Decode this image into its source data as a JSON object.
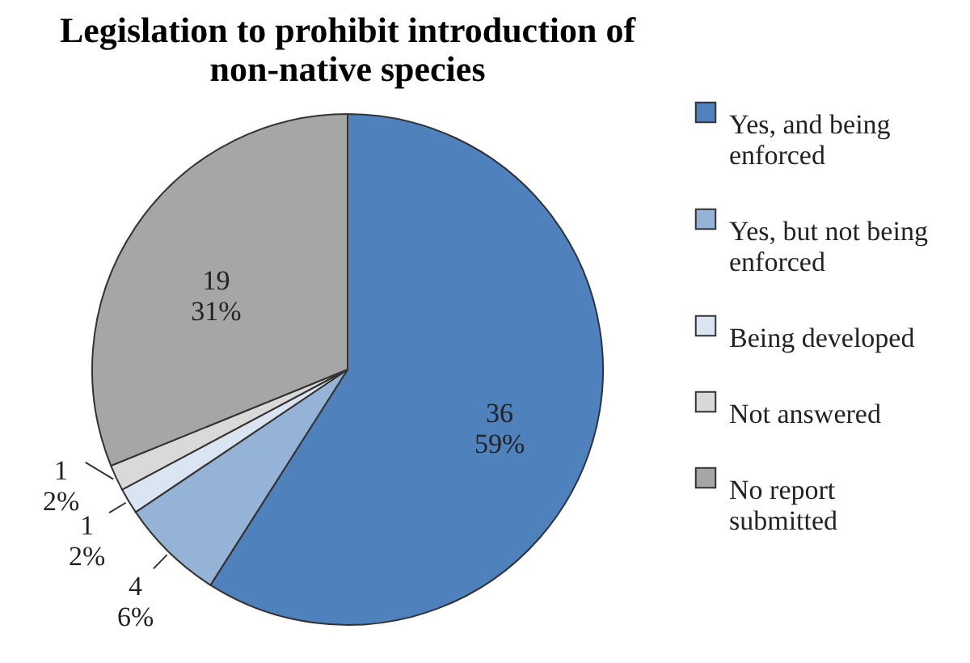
{
  "chart_data": {
    "type": "pie",
    "title": "Legislation to prohibit introduction of non-native species",
    "categories": [
      "Yes, and being enforced",
      "Yes, but not being enforced",
      "Being developed",
      "Not answered",
      "No report submitted"
    ],
    "values": [
      36,
      4,
      1,
      1,
      19
    ],
    "value_labels": [
      "36\n59%",
      "4\n6%",
      "1\n2%",
      "1\n2%",
      "19\n31%"
    ],
    "colors": [
      "#4f81bd",
      "#95b3d7",
      "#dbe5f1",
      "#d9d9d9",
      "#a6a6a6"
    ],
    "legend": "right"
  }
}
